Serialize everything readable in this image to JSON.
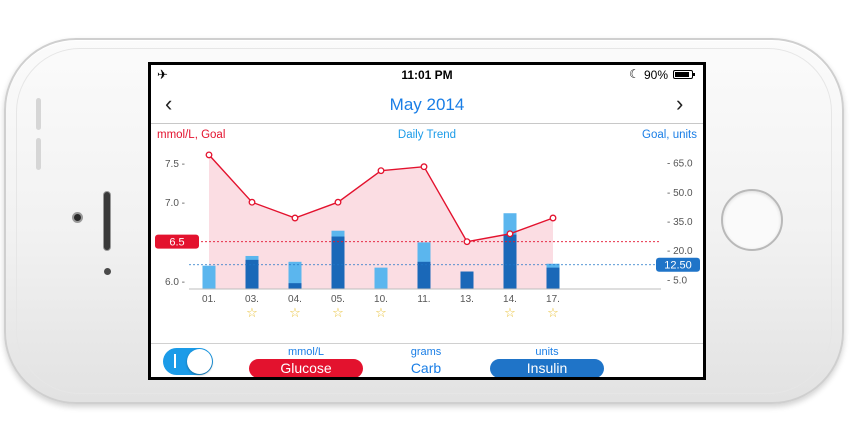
{
  "status_bar": {
    "airplane_icon": "airplane-icon",
    "time": "11:01 PM",
    "moon_icon": "moon-icon",
    "battery_percent": "90%",
    "battery_level": 0.9
  },
  "nav": {
    "title": "May 2014",
    "back_icon": "chevron-left-icon",
    "forward_icon": "chevron-right-icon"
  },
  "chart_header": {
    "left_label": "mmol/L, Goal",
    "center_label": "Daily Trend",
    "right_label": "Goal, units"
  },
  "chart_data": {
    "type": "bar",
    "categories": [
      "01.",
      "03.",
      "04.",
      "05.",
      "10.",
      "11.",
      "13.",
      "14.",
      "17."
    ],
    "starred": [
      false,
      true,
      true,
      true,
      true,
      false,
      false,
      true,
      true
    ],
    "left_axis": {
      "ticks": [
        "7.5 -",
        "7.0 -",
        "6.5 -",
        "6.0 -"
      ],
      "values": [
        7.5,
        7.0,
        6.5,
        6.0
      ],
      "range": [
        5.9,
        7.7
      ]
    },
    "right_axis": {
      "ticks": [
        "- 65.0",
        "- 50.0",
        "- 35.0",
        "- 20.0",
        "- 5.0"
      ],
      "values": [
        65,
        50,
        35,
        20,
        5
      ],
      "range": [
        0,
        70
      ]
    },
    "glucose_goal": {
      "value": 6.5,
      "label": "6.5"
    },
    "insulin_goal": {
      "value": 12.5,
      "label": "12.50"
    },
    "series": [
      {
        "name": "Glucose",
        "axis": "left",
        "values": [
          7.6,
          7.0,
          6.8,
          7.0,
          7.4,
          7.45,
          6.5,
          6.6,
          6.8
        ]
      },
      {
        "name": "Carb",
        "axis": "right",
        "values": [
          12,
          17,
          14,
          30,
          11,
          24,
          0,
          39,
          13
        ]
      },
      {
        "name": "Insulin",
        "axis": "right",
        "values": [
          0,
          15,
          3,
          27,
          0,
          14,
          9,
          28,
          11
        ]
      }
    ],
    "colors": {
      "glucose": "#e3122e",
      "glucose_fill": "#fbdde3",
      "carb": "#5bb6ee",
      "insulin": "#1a68b8",
      "goal_insulin": "#1f74c8"
    }
  },
  "bottom_bar": {
    "toggle_on": true,
    "glucose_unit": "mmol/L",
    "glucose_label": "Glucose",
    "carb_unit": "grams",
    "carb_label": "Carb",
    "insulin_unit": "units",
    "insulin_label": "Insulin"
  }
}
